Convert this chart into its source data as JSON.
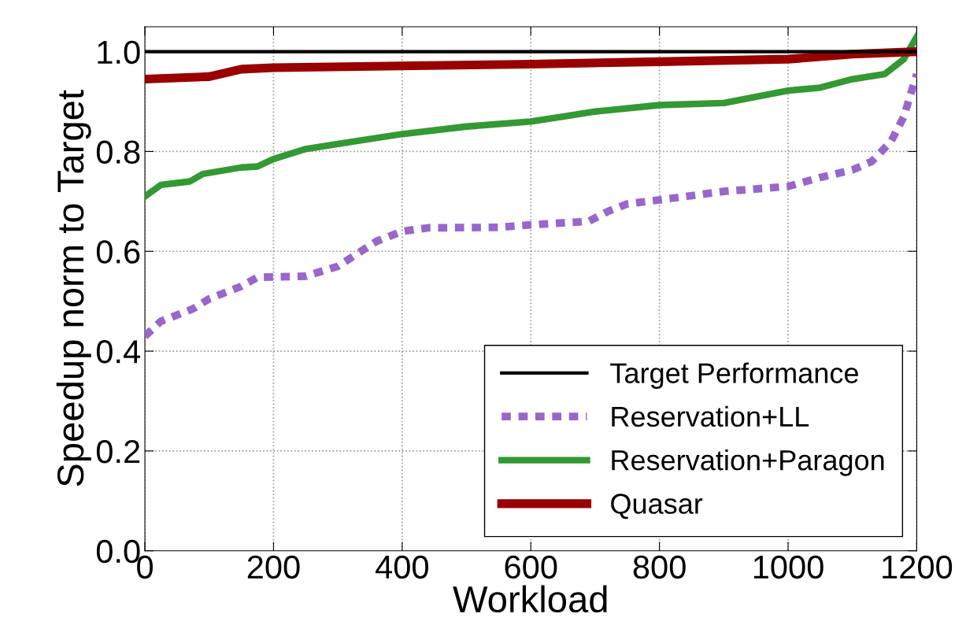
{
  "chart_data": {
    "type": "line",
    "xlabel": "Workload",
    "ylabel": "Speedup norm to Target",
    "xlim": [
      0,
      1200
    ],
    "ylim": [
      0,
      1.05
    ],
    "xticks": [
      0,
      200,
      400,
      600,
      800,
      1000,
      1200
    ],
    "yticks": [
      {
        "value": 0,
        "label": "0.0"
      },
      0.2,
      0.4,
      0.6,
      0.8,
      {
        "value": 1,
        "label": "1.0"
      }
    ],
    "grid": true,
    "legend": "bottom right",
    "series": [
      {
        "name": "Target Performance",
        "color": "#000000",
        "line_style": "solid",
        "x": [
          0,
          1200
        ],
        "values": [
          1.0,
          1.0
        ]
      },
      {
        "name": "Reservation+LL",
        "color": "#9966cc",
        "line_style": "dotted",
        "x": [
          0,
          25,
          75,
          100,
          150,
          175,
          250,
          300,
          360,
          400,
          440,
          550,
          600,
          650,
          690,
          720,
          750,
          800,
          900,
          1000,
          1050,
          1100,
          1130,
          1160,
          1180,
          1200
        ],
        "values": [
          0.43,
          0.46,
          0.485,
          0.505,
          0.53,
          0.548,
          0.55,
          0.57,
          0.62,
          0.64,
          0.647,
          0.648,
          0.653,
          0.657,
          0.66,
          0.68,
          0.695,
          0.703,
          0.72,
          0.73,
          0.748,
          0.763,
          0.78,
          0.82,
          0.87,
          0.955
        ]
      },
      {
        "name": "Reservation+Paragon",
        "color": "#339933",
        "line_style": "solid",
        "x": [
          0,
          25,
          70,
          90,
          150,
          175,
          200,
          250,
          300,
          400,
          500,
          600,
          650,
          700,
          800,
          900,
          1000,
          1050,
          1100,
          1150,
          1180,
          1200
        ],
        "values": [
          0.71,
          0.733,
          0.74,
          0.755,
          0.768,
          0.77,
          0.785,
          0.805,
          0.815,
          0.835,
          0.85,
          0.86,
          0.87,
          0.88,
          0.893,
          0.897,
          0.922,
          0.928,
          0.945,
          0.955,
          0.985,
          1.03
        ]
      },
      {
        "name": "Quasar",
        "color": "#990000",
        "line_style": "solid",
        "x": [
          0,
          100,
          150,
          200,
          600,
          800,
          1000,
          1100,
          1200
        ],
        "values": [
          0.945,
          0.95,
          0.965,
          0.968,
          0.975,
          0.98,
          0.985,
          0.995,
          1.0
        ]
      }
    ]
  }
}
